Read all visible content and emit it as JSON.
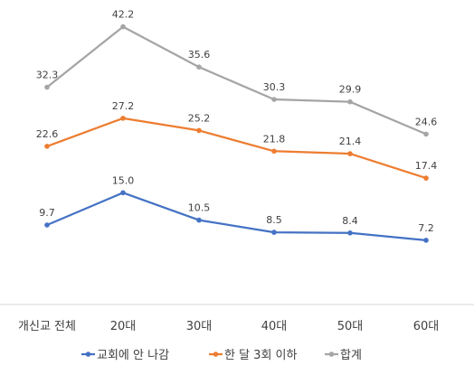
{
  "chart_data": {
    "type": "line",
    "categories": [
      "개신교 전체",
      "20대",
      "30대",
      "40대",
      "50대",
      "60대"
    ],
    "series": [
      {
        "name": "교회에 안 나감",
        "color": "#4472c4",
        "values": [
          9.7,
          15.0,
          10.5,
          8.5,
          8.4,
          7.2
        ],
        "labels": [
          "9.7",
          "15.0",
          "10.5",
          "8.5",
          "8.4",
          "7.2"
        ]
      },
      {
        "name": "한 달 3회 이하",
        "color": "#ed7d31",
        "values": [
          22.6,
          27.2,
          25.2,
          21.8,
          21.4,
          17.4
        ],
        "labels": [
          "22.6",
          "27.2",
          "25.2",
          "21.8",
          "21.4",
          "17.4"
        ]
      },
      {
        "name": "합계",
        "color": "#a5a5a5",
        "values": [
          32.3,
          42.2,
          35.6,
          30.3,
          29.9,
          24.6
        ],
        "labels": [
          "32.3",
          "42.2",
          "35.6",
          "30.3",
          "29.9",
          "24.6"
        ]
      }
    ],
    "title": "",
    "xlabel": "",
    "ylabel": "",
    "grid": false,
    "legend_position": "bottom",
    "data_labels": true
  }
}
